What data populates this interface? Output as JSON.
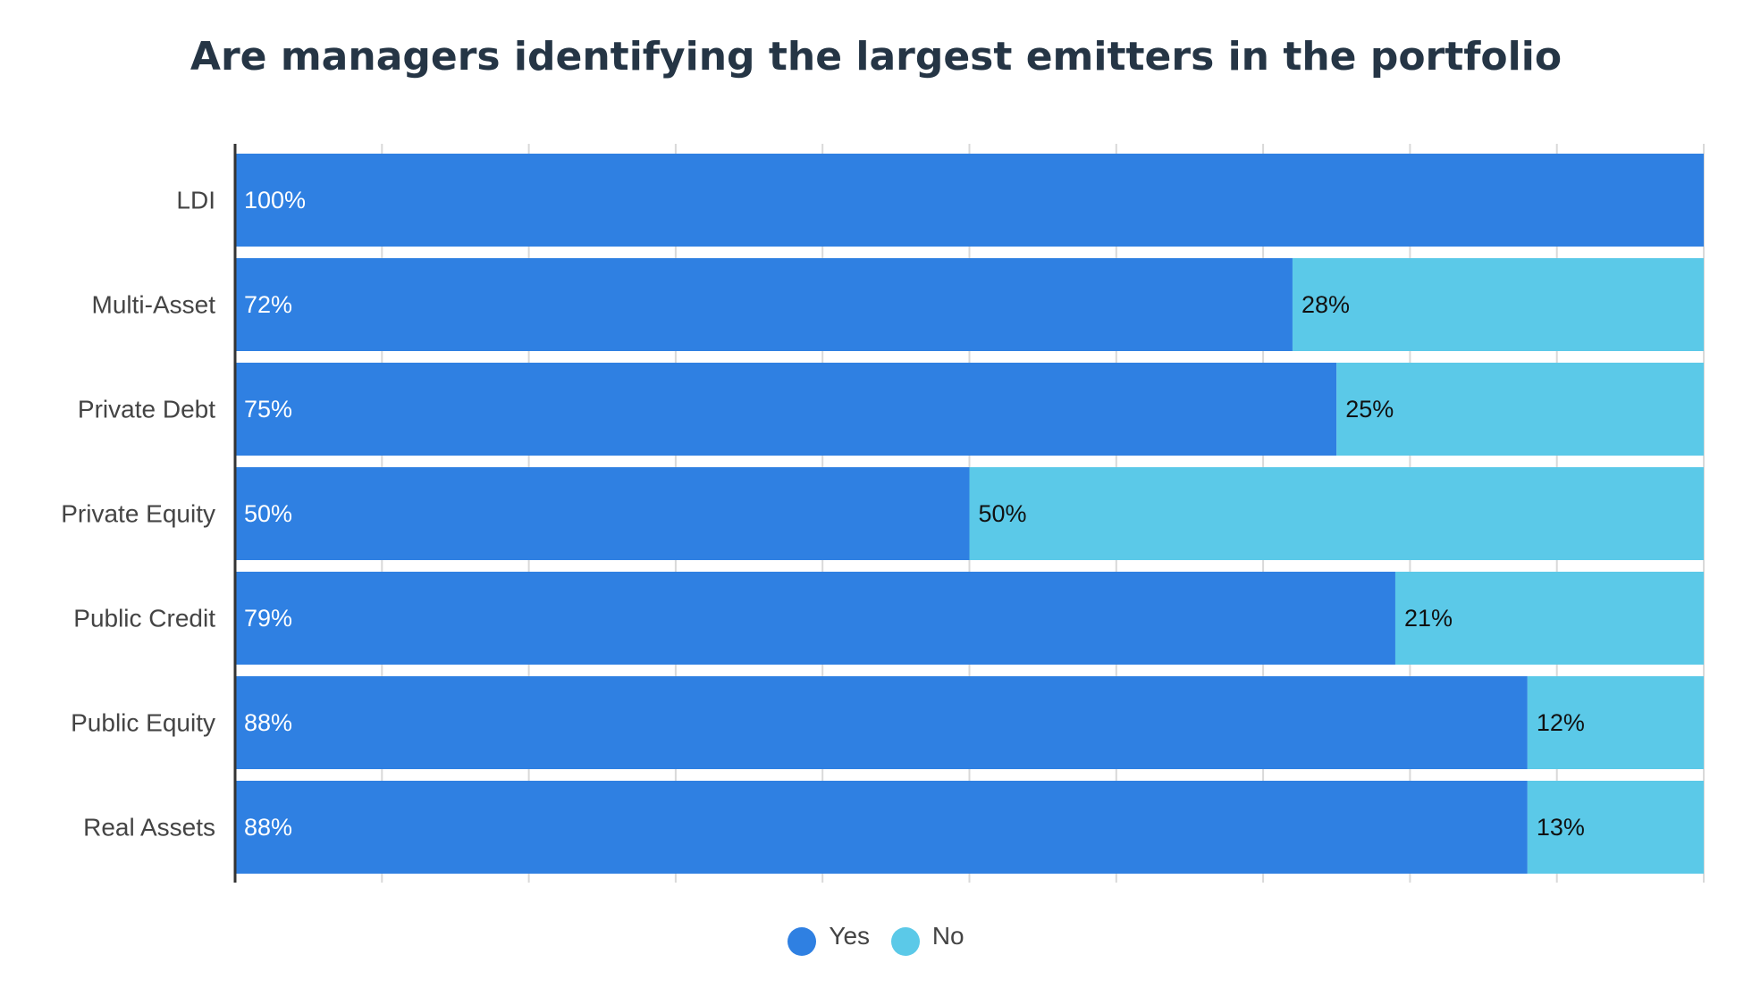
{
  "chart_data": {
    "type": "bar",
    "orientation": "horizontal",
    "stacked": true,
    "title": "Are managers identifying the largest emitters in the portfolio",
    "categories": [
      "LDI",
      "Multi-Asset",
      "Private Debt",
      "Private Equity",
      "Public Credit",
      "Public Equity",
      "Real Assets"
    ],
    "series": [
      {
        "name": "Yes",
        "color": "#2f80e2",
        "label_color": "#ffffff",
        "values": [
          100,
          72,
          75,
          50,
          79,
          88,
          88
        ]
      },
      {
        "name": "No",
        "color": "#5bc9e8",
        "label_color": "#111111",
        "values": [
          0,
          28,
          25,
          50,
          21,
          12,
          13
        ]
      }
    ],
    "value_suffix": "%",
    "xlim": [
      0,
      100
    ],
    "grid": true,
    "legend": "bottom-center"
  }
}
